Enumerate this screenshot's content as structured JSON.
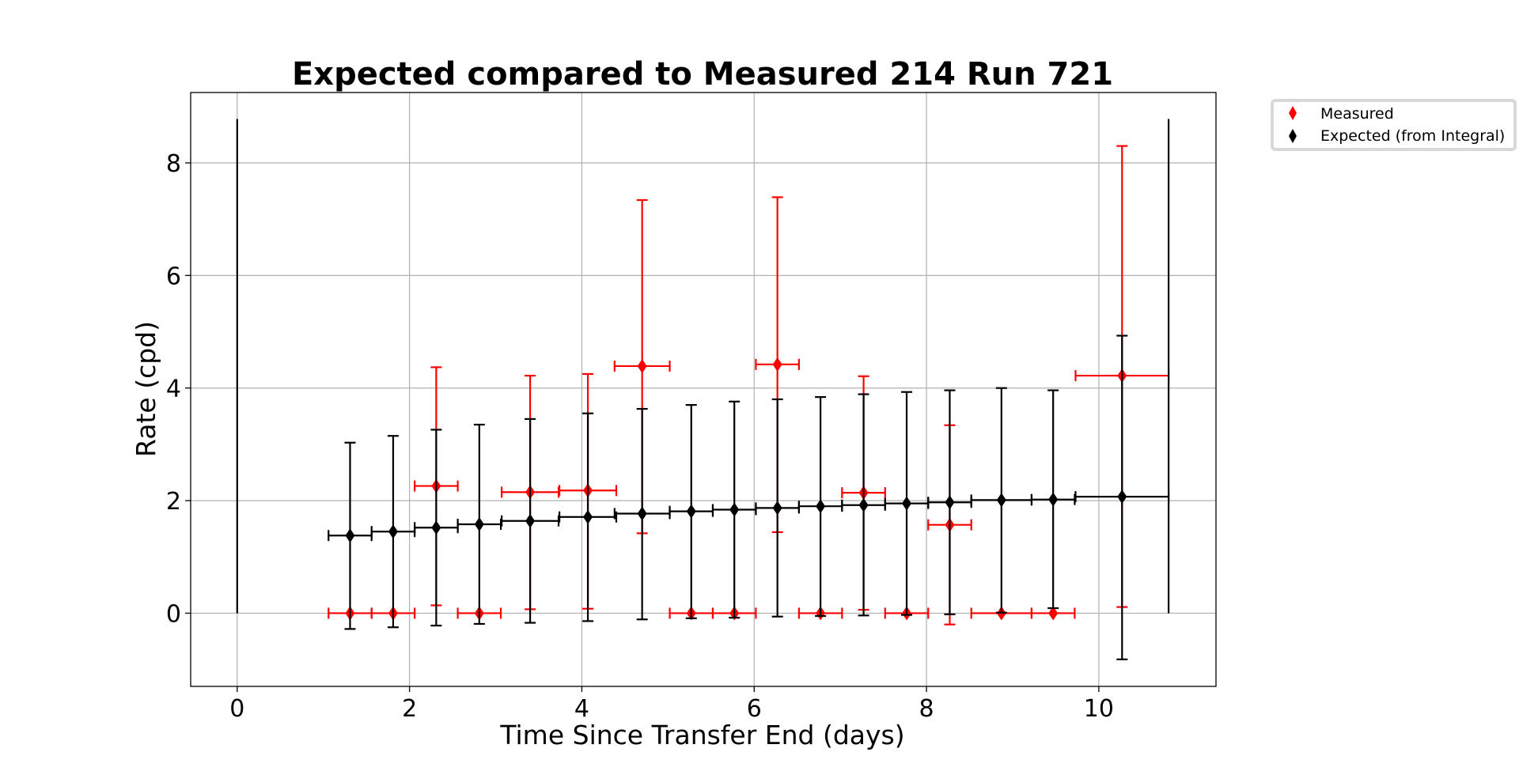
{
  "chart_data": {
    "type": "scatter",
    "title": "Expected compared to Measured 214 Run 721",
    "xlabel": "Time Since Transfer End (days)",
    "ylabel": "Rate (cpd)",
    "xlim": [
      -0.54,
      11.36
    ],
    "ylim": [
      -1.3,
      9.25
    ],
    "xticks": [
      0,
      2,
      4,
      6,
      8,
      10
    ],
    "yticks": [
      0,
      2,
      4,
      6,
      8
    ],
    "grid": true,
    "legend_position": "outside top-right",
    "series": [
      {
        "name": "Measured",
        "color": "#ff0000",
        "marker": "diamond",
        "points": [
          {
            "x": 1.31,
            "y": 0.0,
            "xerr": 0.25,
            "ylo": 0.0,
            "yhi": 0.0
          },
          {
            "x": 1.81,
            "y": 0.0,
            "xerr": 0.25,
            "ylo": 0.0,
            "yhi": 0.0
          },
          {
            "x": 2.31,
            "y": 2.26,
            "xerr": 0.25,
            "ylo": 0.14,
            "yhi": 4.37
          },
          {
            "x": 2.81,
            "y": 0.0,
            "xerr": 0.25,
            "ylo": 0.0,
            "yhi": 0.0
          },
          {
            "x": 3.4,
            "y": 2.15,
            "xerr": 0.33,
            "ylo": 0.07,
            "yhi": 4.22
          },
          {
            "x": 4.07,
            "y": 2.18,
            "xerr": 0.33,
            "ylo": 0.08,
            "yhi": 4.25
          },
          {
            "x": 4.7,
            "y": 4.39,
            "xerr": 0.32,
            "ylo": 1.42,
            "yhi": 7.34
          },
          {
            "x": 5.27,
            "y": 0.0,
            "xerr": 0.25,
            "ylo": 0.0,
            "yhi": 0.0
          },
          {
            "x": 5.77,
            "y": 0.0,
            "xerr": 0.25,
            "ylo": 0.0,
            "yhi": 0.0
          },
          {
            "x": 6.27,
            "y": 4.42,
            "xerr": 0.25,
            "ylo": 1.44,
            "yhi": 7.39
          },
          {
            "x": 6.77,
            "y": 0.0,
            "xerr": 0.25,
            "ylo": 0.0,
            "yhi": 0.0
          },
          {
            "x": 7.27,
            "y": 2.14,
            "xerr": 0.25,
            "ylo": 0.06,
            "yhi": 4.21
          },
          {
            "x": 7.77,
            "y": 0.0,
            "xerr": 0.25,
            "ylo": 0.0,
            "yhi": 0.0
          },
          {
            "x": 8.27,
            "y": 1.57,
            "xerr": 0.25,
            "ylo": -0.2,
            "yhi": 3.34
          },
          {
            "x": 8.87,
            "y": 0.0,
            "xerr": 0.35,
            "ylo": 0.0,
            "yhi": 0.0
          },
          {
            "x": 9.47,
            "y": 0.0,
            "xerr": 0.25,
            "ylo": 0.0,
            "yhi": 0.0
          },
          {
            "x": 10.27,
            "y": 4.22,
            "xerr": 0.54,
            "ylo": 0.11,
            "yhi": 8.3
          }
        ]
      },
      {
        "name": "Expected (from Integral)",
        "color": "#000000",
        "marker": "diamond",
        "points": [
          {
            "x": 1.31,
            "y": 1.38,
            "xerr": 0.25,
            "ylo": -0.28,
            "yhi": 3.03
          },
          {
            "x": 1.81,
            "y": 1.45,
            "xerr": 0.25,
            "ylo": -0.25,
            "yhi": 3.15
          },
          {
            "x": 2.31,
            "y": 1.52,
            "xerr": 0.25,
            "ylo": -0.22,
            "yhi": 3.26
          },
          {
            "x": 2.81,
            "y": 1.58,
            "xerr": 0.25,
            "ylo": -0.19,
            "yhi": 3.35
          },
          {
            "x": 3.4,
            "y": 1.64,
            "xerr": 0.33,
            "ylo": -0.17,
            "yhi": 3.45
          },
          {
            "x": 4.07,
            "y": 1.71,
            "xerr": 0.33,
            "ylo": -0.14,
            "yhi": 3.55
          },
          {
            "x": 4.7,
            "y": 1.77,
            "xerr": 0.32,
            "ylo": -0.11,
            "yhi": 3.63
          },
          {
            "x": 5.27,
            "y": 1.81,
            "xerr": 0.25,
            "ylo": -0.09,
            "yhi": 3.7
          },
          {
            "x": 5.77,
            "y": 1.84,
            "xerr": 0.25,
            "ylo": -0.08,
            "yhi": 3.76
          },
          {
            "x": 6.27,
            "y": 1.87,
            "xerr": 0.25,
            "ylo": -0.06,
            "yhi": 3.8
          },
          {
            "x": 6.77,
            "y": 1.9,
            "xerr": 0.25,
            "ylo": -0.05,
            "yhi": 3.84
          },
          {
            "x": 7.27,
            "y": 1.92,
            "xerr": 0.25,
            "ylo": -0.04,
            "yhi": 3.89
          },
          {
            "x": 7.77,
            "y": 1.95,
            "xerr": 0.25,
            "ylo": -0.03,
            "yhi": 3.93
          },
          {
            "x": 8.27,
            "y": 1.97,
            "xerr": 0.25,
            "ylo": -0.02,
            "yhi": 3.96
          },
          {
            "x": 8.87,
            "y": 2.01,
            "xerr": 0.35,
            "ylo": 0.01,
            "yhi": 4.0
          },
          {
            "x": 9.47,
            "y": 2.02,
            "xerr": 0.25,
            "ylo": 0.09,
            "yhi": 3.96
          },
          {
            "x": 10.27,
            "y": 2.07,
            "xerr": 0.54,
            "ylo": -0.82,
            "yhi": 4.93
          }
        ]
      },
      {
        "name": "",
        "color": "#000000",
        "marker": "none",
        "points": [
          {
            "x": 0.0,
            "y": 0.0,
            "xerr": 0,
            "ylo": 0.0,
            "yhi": 8.78
          },
          {
            "x": 10.81,
            "y": 0.0,
            "xerr": 0,
            "ylo": 0.0,
            "yhi": 8.78
          }
        ]
      }
    ]
  }
}
